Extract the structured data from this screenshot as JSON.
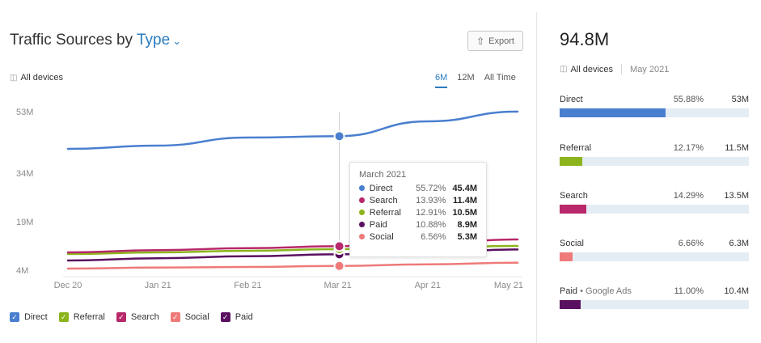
{
  "header": {
    "title_prefix": "Traffic Sources by",
    "title_type": "Type",
    "export_label": "Export",
    "devices_label": "All devices",
    "ranges": [
      "6M",
      "12M",
      "All Time"
    ],
    "active_range": "6M"
  },
  "colors": {
    "direct": "#4a7fcf",
    "referral": "#8cb41c",
    "search": "#b8286a",
    "social": "#ee7a7a",
    "paid": "#5a1060",
    "accent": "#2a7bbf"
  },
  "chart_data": {
    "type": "line",
    "x": [
      "Dec 20",
      "Jan 21",
      "Feb 21",
      "Mar 21",
      "Apr 21",
      "May 21"
    ],
    "y_ticks": [
      "53M",
      "34M",
      "19M",
      "4M"
    ],
    "y_tick_values": [
      53,
      34,
      19,
      4
    ],
    "series": [
      {
        "name": "Direct",
        "key": "direct",
        "values": [
          41.5,
          42.5,
          45.0,
          45.4,
          50.0,
          53.0
        ]
      },
      {
        "name": "Referral",
        "key": "referral",
        "values": [
          9.0,
          9.5,
          10.0,
          10.5,
          11.0,
          11.5
        ]
      },
      {
        "name": "Search",
        "key": "search",
        "values": [
          9.5,
          10.2,
          10.8,
          11.4,
          12.3,
          13.5
        ]
      },
      {
        "name": "Paid",
        "key": "paid",
        "values": [
          7.0,
          7.7,
          8.3,
          8.9,
          9.5,
          10.4
        ]
      },
      {
        "name": "Social",
        "key": "social",
        "values": [
          4.5,
          4.8,
          5.0,
          5.3,
          5.8,
          6.3
        ]
      }
    ],
    "highlight_index": 3
  },
  "tooltip": {
    "title": "March 2021",
    "rows": [
      {
        "name": "Direct",
        "key": "direct",
        "pct": "55.72%",
        "value": "45.4M"
      },
      {
        "name": "Search",
        "key": "search",
        "pct": "13.93%",
        "value": "11.4M"
      },
      {
        "name": "Referral",
        "key": "referral",
        "pct": "12.91%",
        "value": "10.5M"
      },
      {
        "name": "Paid",
        "key": "paid",
        "pct": "10.88%",
        "value": "8.9M"
      },
      {
        "name": "Social",
        "key": "social",
        "pct": "6.56%",
        "value": "5.3M"
      }
    ]
  },
  "legend": [
    {
      "name": "Direct",
      "key": "direct"
    },
    {
      "name": "Referral",
      "key": "referral"
    },
    {
      "name": "Search",
      "key": "search"
    },
    {
      "name": "Social",
      "key": "social"
    },
    {
      "name": "Paid",
      "key": "paid"
    }
  ],
  "summary": {
    "total": "94.8M",
    "devices_label": "All devices",
    "date": "May 2021",
    "sources": [
      {
        "label": "Direct",
        "sub": "",
        "pct": "55.88%",
        "value": "53M",
        "key": "direct",
        "share": 0.5588
      },
      {
        "label": "Referral",
        "sub": "",
        "pct": "12.17%",
        "value": "11.5M",
        "key": "referral",
        "share": 0.1217
      },
      {
        "label": "Search",
        "sub": "",
        "pct": "14.29%",
        "value": "13.5M",
        "key": "search",
        "share": 0.1429
      },
      {
        "label": "Social",
        "sub": "",
        "pct": "6.66%",
        "value": "6.3M",
        "key": "social",
        "share": 0.0666
      },
      {
        "label": "Paid",
        "sub": " • Google Ads",
        "pct": "11.00%",
        "value": "10.4M",
        "key": "paid",
        "share": 0.11
      }
    ]
  }
}
